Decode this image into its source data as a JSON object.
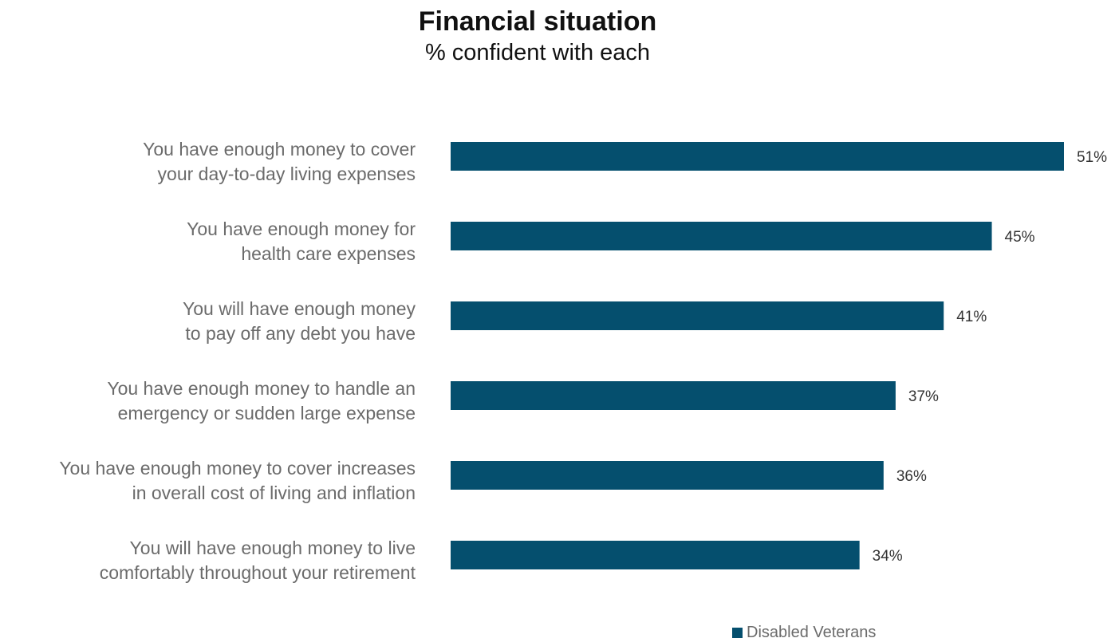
{
  "chart_data": {
    "type": "bar",
    "orientation": "horizontal",
    "title": "Financial situation",
    "subtitle": "% confident with each",
    "categories": [
      [
        "You have enough money to cover",
        "your day-to-day living expenses"
      ],
      [
        "You have enough money for",
        "health care expenses"
      ],
      [
        "You will have enough money",
        "to pay off any debt you have"
      ],
      [
        "You have enough money to handle an",
        "emergency or sudden large expense"
      ],
      [
        "You have enough money to cover increases",
        "in overall cost of living and inflation"
      ],
      [
        "You will have enough money to live",
        "comfortably throughout your retirement"
      ]
    ],
    "series": [
      {
        "name": "Disabled Veterans",
        "values": [
          51,
          45,
          41,
          37,
          36,
          34
        ],
        "labels": [
          "51%",
          "45%",
          "41%",
          "37%",
          "36%",
          "34%"
        ],
        "color": "#054f6e"
      }
    ],
    "legend": {
      "position": "bottom-right",
      "label": "Disabled Veterans"
    },
    "grid": false
  }
}
